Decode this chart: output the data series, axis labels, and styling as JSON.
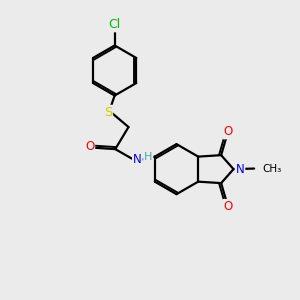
{
  "bg_color": "#ebebeb",
  "bond_color": "#000000",
  "bond_width": 1.6,
  "atom_colors": {
    "Cl": "#00bb00",
    "S": "#cccc00",
    "O": "#ff0000",
    "N": "#0000ee",
    "H": "#44aaaa"
  },
  "font_size": 8.5,
  "fig_size": [
    3.0,
    3.0
  ],
  "dpi": 100
}
